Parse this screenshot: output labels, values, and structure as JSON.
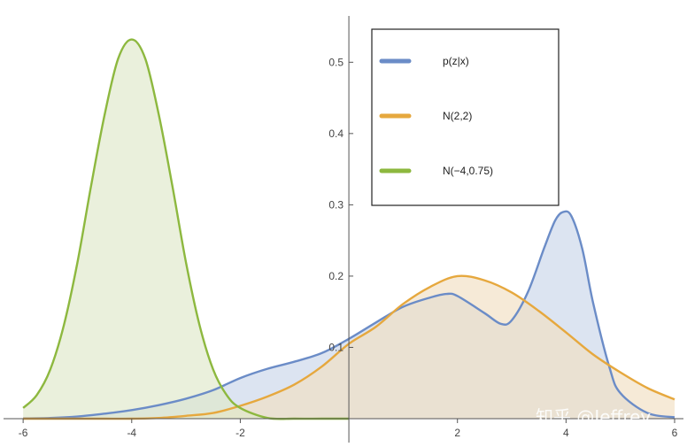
{
  "chart_data": {
    "type": "area",
    "title": "",
    "xlabel": "",
    "ylabel": "",
    "xlim": [
      -6.1,
      6.0
    ],
    "ylim": [
      0,
      0.56
    ],
    "x_ticks": [
      -6,
      -4,
      -2,
      2,
      4,
      6
    ],
    "x_tick_labels": [
      "-6",
      "-4",
      "-2",
      "2",
      "4",
      "6"
    ],
    "y_ticks": [
      0.1,
      0.2,
      0.3,
      0.4,
      0.5
    ],
    "y_tick_labels": [
      "0.1",
      "0.2",
      "0.3",
      "0.4",
      "0.5"
    ],
    "grid": false,
    "legend_position": "top-center",
    "legend": [
      "p(z|x)",
      "N(2,2)",
      "N(−4,0.75)"
    ],
    "series": [
      {
        "name": "p(z|x)",
        "color": "#6b8cc7",
        "fill": "#c9d5ea",
        "x": [
          -6,
          -5.5,
          -5,
          -4.5,
          -4,
          -3.5,
          -3,
          -2.5,
          -2,
          -1.5,
          -1,
          -0.5,
          0,
          0.5,
          1,
          1.5,
          1.8,
          2,
          2.5,
          2.8,
          3,
          3.3,
          3.6,
          3.8,
          3.95,
          4.1,
          4.3,
          4.5,
          4.8,
          5,
          5.5,
          6
        ],
        "y": [
          0.0003,
          0.001,
          0.003,
          0.007,
          0.012,
          0.019,
          0.028,
          0.04,
          0.057,
          0.07,
          0.08,
          0.092,
          0.112,
          0.135,
          0.157,
          0.17,
          0.175,
          0.172,
          0.148,
          0.133,
          0.138,
          0.178,
          0.24,
          0.278,
          0.29,
          0.284,
          0.238,
          0.162,
          0.072,
          0.036,
          0.008,
          0.002
        ]
      },
      {
        "name": "N(2,2)",
        "color": "#e6a83e",
        "fill": "#f1dfc2",
        "x": [
          -6,
          -5.5,
          -5,
          -4.5,
          -4,
          -3.5,
          -3,
          -2.5,
          -2,
          -1.5,
          -1,
          -0.5,
          0,
          0.5,
          1,
          1.5,
          2,
          2.5,
          3,
          3.5,
          4,
          4.5,
          5,
          5.5,
          6
        ],
        "y": [
          0.0,
          0.0,
          0.0,
          0.0,
          0.0,
          0.001,
          0.004,
          0.008,
          0.018,
          0.031,
          0.048,
          0.073,
          0.105,
          0.129,
          0.161,
          0.185,
          0.2,
          0.194,
          0.177,
          0.151,
          0.121,
          0.09,
          0.065,
          0.043,
          0.027
        ]
      },
      {
        "name": "N(−4,0.75)",
        "color": "#8db83f",
        "fill": "#dfe8c9",
        "x": [
          -6,
          -5.75,
          -5.5,
          -5.25,
          -5,
          -4.75,
          -4.5,
          -4.25,
          -4,
          -3.75,
          -3.5,
          -3.25,
          -3,
          -2.75,
          -2.5,
          -2.25,
          -2,
          -1.5,
          -1,
          -0.5,
          0
        ],
        "y": [
          0.015,
          0.033,
          0.069,
          0.131,
          0.219,
          0.326,
          0.426,
          0.505,
          0.532,
          0.505,
          0.426,
          0.326,
          0.219,
          0.131,
          0.069,
          0.033,
          0.015,
          0.001,
          0.0,
          0.0,
          0.0
        ]
      }
    ]
  },
  "watermark": "知乎 @Jeffrey"
}
